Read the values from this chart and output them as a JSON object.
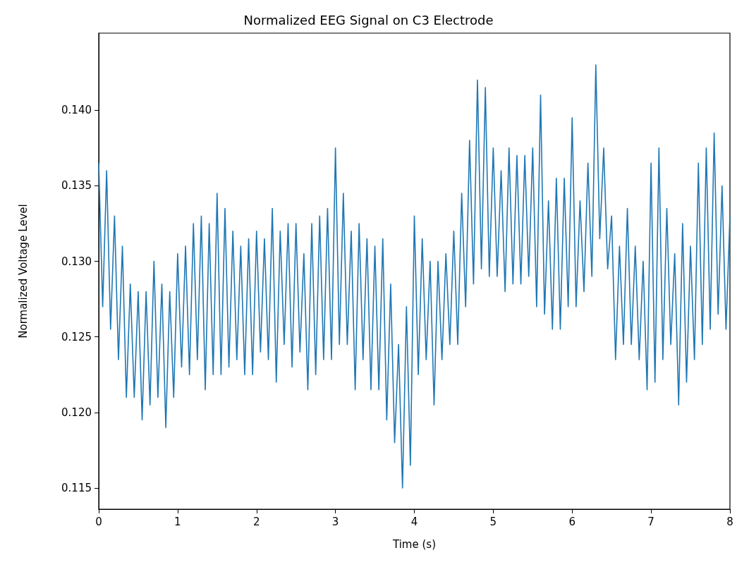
{
  "chart_data": {
    "type": "line",
    "title": "Normalized EEG Signal on C3 Electrode",
    "xlabel": "Time (s)",
    "ylabel": "Normalized Voltage Level",
    "x": [
      0,
      0.05,
      0.1,
      0.15,
      0.2,
      0.25,
      0.3,
      0.35,
      0.4,
      0.45,
      0.5,
      0.55,
      0.6,
      0.65,
      0.7,
      0.75,
      0.8,
      0.85,
      0.9,
      0.95,
      1,
      1.05,
      1.1,
      1.15,
      1.2,
      1.25,
      1.3,
      1.35,
      1.4,
      1.45,
      1.5,
      1.55,
      1.6,
      1.65,
      1.7,
      1.75,
      1.8,
      1.85,
      1.9,
      1.95,
      2,
      2.05,
      2.1,
      2.15,
      2.2,
      2.25,
      2.3,
      2.35,
      2.4,
      2.45,
      2.5,
      2.55,
      2.6,
      2.65,
      2.7,
      2.75,
      2.8,
      2.85,
      2.9,
      2.95,
      3,
      3.05,
      3.1,
      3.15,
      3.2,
      3.25,
      3.3,
      3.35,
      3.4,
      3.45,
      3.5,
      3.55,
      3.6,
      3.65,
      3.7,
      3.75,
      3.8,
      3.85,
      3.9,
      3.95,
      4,
      4.05,
      4.1,
      4.15,
      4.2,
      4.25,
      4.3,
      4.35,
      4.4,
      4.45,
      4.5,
      4.55,
      4.6,
      4.65,
      4.7,
      4.75,
      4.8,
      4.85,
      4.9,
      4.95,
      5,
      5.05,
      5.1,
      5.15,
      5.2,
      5.25,
      5.3,
      5.35,
      5.4,
      5.45,
      5.5,
      5.55,
      5.6,
      5.65,
      5.7,
      5.75,
      5.8,
      5.85,
      5.9,
      5.95,
      6,
      6.05,
      6.1,
      6.15,
      6.2,
      6.25,
      6.3,
      6.35,
      6.4,
      6.45,
      6.5,
      6.55,
      6.6,
      6.65,
      6.7,
      6.75,
      6.8,
      6.85,
      6.9,
      6.95,
      7,
      7.05,
      7.1,
      7.15,
      7.2,
      7.25,
      7.3,
      7.35,
      7.4,
      7.45,
      7.5,
      7.55,
      7.6,
      7.65,
      7.7,
      7.75,
      7.8,
      7.85,
      7.9,
      7.95,
      8
    ],
    "series": [
      {
        "color": "#1f77b4",
        "values": [
          0.1365,
          0.127,
          0.136,
          0.1255,
          0.133,
          0.1235,
          0.131,
          0.121,
          0.1285,
          0.121,
          0.128,
          0.1195,
          0.128,
          0.1205,
          0.13,
          0.121,
          0.1285,
          0.119,
          0.128,
          0.121,
          0.1305,
          0.123,
          0.131,
          0.1225,
          0.1325,
          0.1235,
          0.133,
          0.1215,
          0.1325,
          0.1225,
          0.1345,
          0.1225,
          0.1335,
          0.123,
          0.132,
          0.1235,
          0.131,
          0.1225,
          0.1315,
          0.1225,
          0.132,
          0.124,
          0.1315,
          0.1235,
          0.1335,
          0.122,
          0.132,
          0.1245,
          0.1325,
          0.123,
          0.1325,
          0.124,
          0.1305,
          0.1215,
          0.1325,
          0.1225,
          0.133,
          0.1235,
          0.1335,
          0.1235,
          0.1375,
          0.1245,
          0.1345,
          0.1245,
          0.132,
          0.1215,
          0.1325,
          0.1235,
          0.1315,
          0.1215,
          0.131,
          0.1215,
          0.1315,
          0.1195,
          0.1285,
          0.118,
          0.1245,
          0.115,
          0.127,
          0.1165,
          0.133,
          0.1225,
          0.1315,
          0.1235,
          0.13,
          0.1205,
          0.13,
          0.1235,
          0.1305,
          0.1245,
          0.132,
          0.1245,
          0.1345,
          0.127,
          0.138,
          0.1285,
          0.142,
          0.1295,
          0.1415,
          0.129,
          0.1375,
          0.129,
          0.136,
          0.128,
          0.1375,
          0.1285,
          0.137,
          0.1285,
          0.137,
          0.129,
          0.1375,
          0.127,
          0.141,
          0.1265,
          0.134,
          0.1255,
          0.1355,
          0.1255,
          0.1355,
          0.127,
          0.1395,
          0.127,
          0.134,
          0.128,
          0.1365,
          0.129,
          0.143,
          0.1315,
          0.1375,
          0.1295,
          0.133,
          0.1235,
          0.131,
          0.1245,
          0.1335,
          0.1245,
          0.131,
          0.1235,
          0.13,
          0.1215,
          0.1365,
          0.122,
          0.1375,
          0.1235,
          0.1335,
          0.1245,
          0.1305,
          0.1205,
          0.1325,
          0.122,
          0.131,
          0.1235,
          0.1365,
          0.1245,
          0.1375,
          0.1255,
          0.1385,
          0.1265,
          0.135,
          0.1255,
          0.133
        ]
      }
    ],
    "xlim": [
      0,
      8
    ],
    "xticks": [
      0,
      1,
      2,
      3,
      4,
      5,
      6,
      7,
      8
    ],
    "ylim": [
      0.1136,
      0.1451
    ],
    "yticks": [
      0.115,
      {
        "value": 0.12,
        "label": "0.120"
      },
      0.125,
      {
        "value": 0.13,
        "label": "0.130"
      },
      0.135,
      {
        "value": 0.14,
        "label": "0.140"
      }
    ],
    "grid": false,
    "marker": "none",
    "line_style": "solid"
  }
}
